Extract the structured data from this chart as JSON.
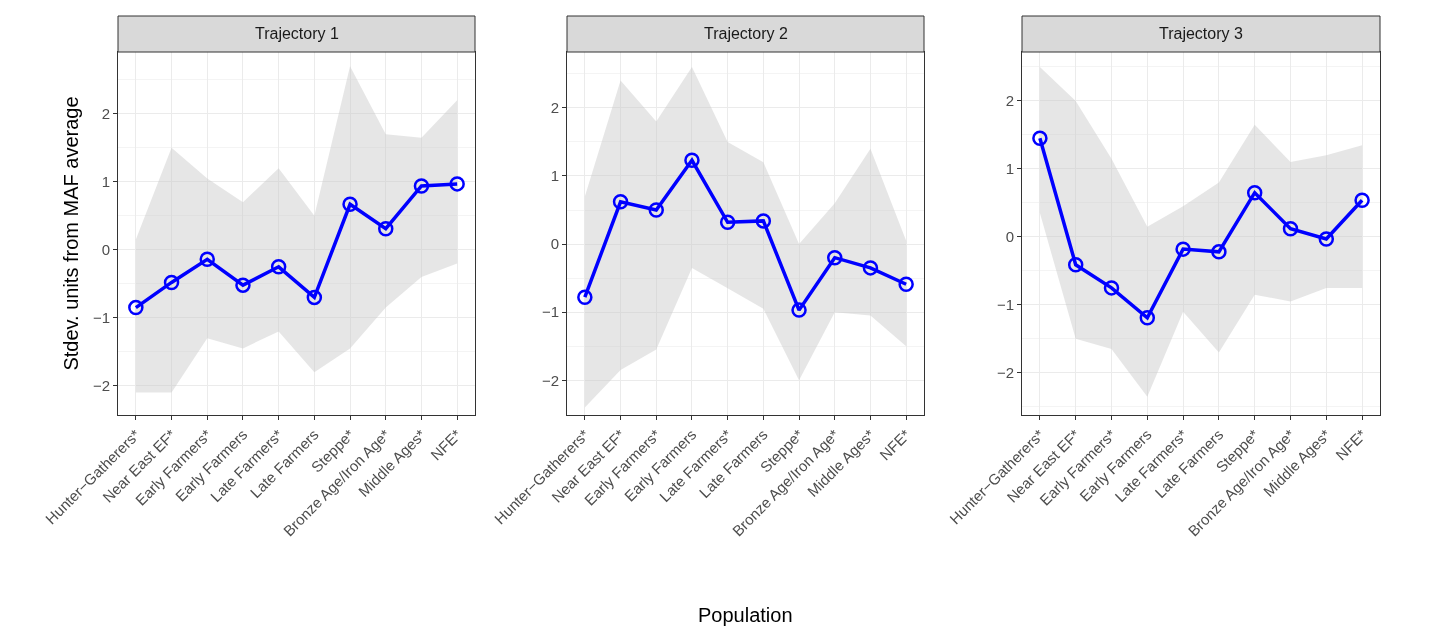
{
  "chart_data": [
    {
      "type": "line",
      "title": "Trajectory 1",
      "ylabel": "Stdev. units from MAF average",
      "categories": [
        "Hunter−Gatherers*",
        "Near East EF*",
        "Early Farmers*",
        "Early Farmers",
        "Late Farmers*",
        "Late Farmers",
        "Steppe*",
        "Bronze Age/Iron Age*",
        "Middle Ages*",
        "NFE*"
      ],
      "ylim": [
        -2.43,
        2.91
      ],
      "yticks": [
        -2,
        -1,
        0,
        1,
        2
      ],
      "grid": true,
      "marker": "circle",
      "line_style": "solid",
      "series": [
        {
          "color": "#0000ff",
          "values": [
            -0.85,
            -0.48,
            -0.14,
            -0.52,
            -0.25,
            -0.7,
            0.67,
            0.31,
            0.94,
            0.97
          ],
          "lower": [
            -2.1,
            -2.1,
            -1.3,
            -1.45,
            -1.2,
            -1.8,
            -1.45,
            -0.85,
            -0.4,
            -0.2
          ],
          "upper": [
            0.15,
            1.5,
            1.05,
            0.7,
            1.2,
            0.5,
            2.7,
            1.7,
            1.65,
            2.2
          ]
        }
      ]
    },
    {
      "type": "line",
      "title": "Trajectory 2",
      "xlabel": "Population",
      "categories": [
        "Hunter−Gatherers*",
        "Near East EF*",
        "Early Farmers*",
        "Early Farmers",
        "Late Farmers*",
        "Late Farmers",
        "Steppe*",
        "Bronze Age/Iron Age*",
        "Middle Ages*",
        "NFE*"
      ],
      "ylim": [
        -2.51,
        2.82
      ],
      "yticks": [
        -2,
        -1,
        0,
        1,
        2
      ],
      "grid": true,
      "marker": "circle",
      "line_style": "solid",
      "series": [
        {
          "color": "#0000ff",
          "values": [
            -0.78,
            0.62,
            0.5,
            1.23,
            0.32,
            0.34,
            -0.97,
            -0.2,
            -0.35,
            -0.59
          ],
          "lower": [
            -2.4,
            -1.85,
            -1.55,
            -0.35,
            -0.65,
            -0.95,
            -2.0,
            -1.0,
            -1.05,
            -1.5
          ],
          "upper": [
            0.7,
            2.4,
            1.8,
            2.6,
            1.5,
            1.2,
            0,
            0.6,
            1.4,
            0.05
          ]
        }
      ]
    },
    {
      "type": "line",
      "title": "Trajectory 3",
      "categories": [
        "Hunter−Gatherers*",
        "Near East EF*",
        "Early Farmers*",
        "Early Farmers",
        "Late Farmers*",
        "Late Farmers",
        "Steppe*",
        "Bronze Age/Iron Age*",
        "Middle Ages*",
        "NFE*"
      ],
      "ylim": [
        -2.62,
        2.72
      ],
      "yticks": [
        -2,
        -1,
        0,
        1,
        2
      ],
      "grid": true,
      "marker": "circle",
      "line_style": "solid",
      "series": [
        {
          "color": "#0000ff",
          "values": [
            1.45,
            -0.41,
            -0.75,
            -1.19,
            -0.18,
            -0.22,
            0.65,
            0.12,
            -0.03,
            0.54
          ],
          "lower": [
            0.35,
            -1.5,
            -1.65,
            -2.35,
            -1.1,
            -1.7,
            -0.85,
            -0.95,
            -0.75,
            -0.75
          ],
          "upper": [
            2.5,
            2.0,
            1.15,
            0.15,
            0.45,
            0.8,
            1.65,
            1.1,
            1.2,
            1.35
          ]
        }
      ]
    }
  ]
}
